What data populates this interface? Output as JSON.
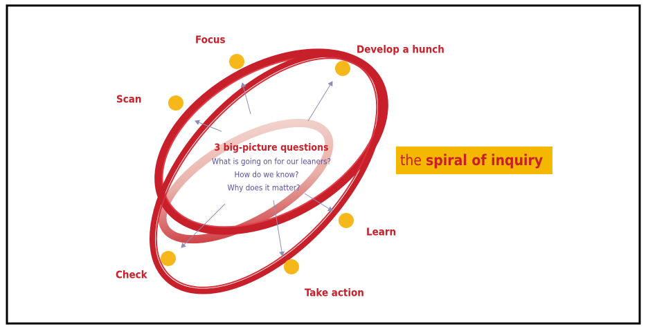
{
  "diagram": {
    "stages": [
      {
        "label": "Scan"
      },
      {
        "label": "Focus"
      },
      {
        "label": "Develop a hunch"
      },
      {
        "label": "Learn"
      },
      {
        "label": "Take action"
      },
      {
        "label": "Check"
      }
    ],
    "center": {
      "title": "3 big-picture questions",
      "questions": [
        "What is going on for our leaners?",
        "How do we know?",
        "Why does it matter?"
      ]
    },
    "tag": {
      "prefix": "the",
      "main": "spiral of inquiry"
    }
  }
}
